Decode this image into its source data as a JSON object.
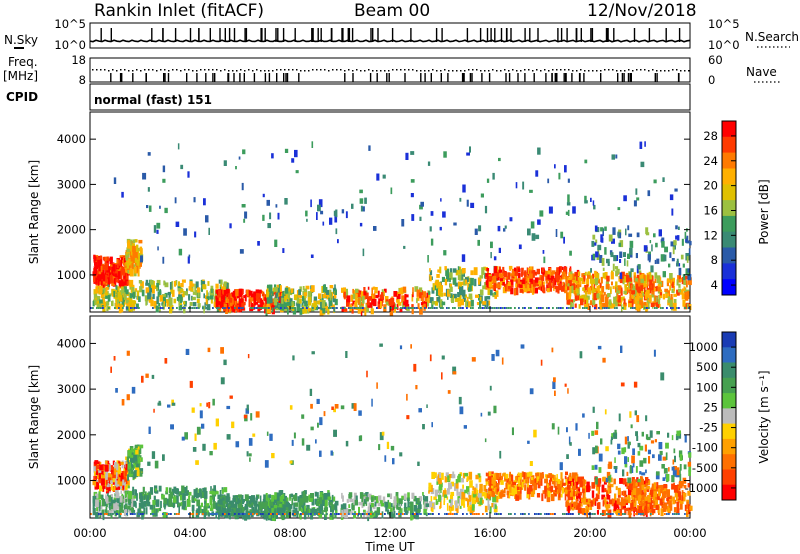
{
  "header": {
    "station": "Rankin Inlet (fitACF)",
    "beam": "Beam 00",
    "date": "12/Nov/2018"
  },
  "left_labels": {
    "nsky": "N.Sky",
    "freq_top": "Freq.",
    "freq_unit": "[MHz]",
    "cpid": "CPID"
  },
  "right_labels": {
    "nsearch": "N.Search",
    "nave": "Nave"
  },
  "cpid_text": "normal (fast) 151",
  "nsky_ticks": [
    "10^5",
    "10^0"
  ],
  "nsearch_ticks": [
    "10^5",
    "10^0"
  ],
  "freq_ticks": [
    "18",
    "8"
  ],
  "nave_ticks": [
    "60",
    "0"
  ],
  "chart_data": [
    {
      "type": "heatmap",
      "quantity": "Power",
      "ylabel": "Slant Range [km]",
      "ylim": [
        180,
        4600
      ],
      "yticks": [
        "1000",
        "2000",
        "3000",
        "4000"
      ],
      "xlabel": "Time UT",
      "xticks": [
        "00:00",
        "04:00",
        "08:00",
        "12:00",
        "16:00",
        "20:00",
        "00:00"
      ],
      "colorbar": {
        "label": "Power [dB]",
        "ticks": [
          "28",
          "24",
          "20",
          "16",
          "12",
          "8",
          "4"
        ],
        "colors": [
          "#ff0000",
          "#ff3a00",
          "#ff7a00",
          "#ffb000",
          "#e0c000",
          "#9cc040",
          "#3c9c5c",
          "#3a8a74",
          "#2a5aa8",
          "#1a30d8",
          "#0000ff"
        ]
      }
    },
    {
      "type": "heatmap",
      "quantity": "Velocity",
      "ylabel": "Slant Range [km]",
      "ylim": [
        180,
        4600
      ],
      "yticks": [
        "1000",
        "2000",
        "3000",
        "4000"
      ],
      "xlabel": "Time UT",
      "xticks": [
        "00:00",
        "04:00",
        "08:00",
        "12:00",
        "16:00",
        "20:00",
        "00:00"
      ],
      "colorbar": {
        "label": "Velocity [m s⁻¹]",
        "ticks": [
          "1000",
          "500",
          "100",
          "25",
          "-25",
          "-100",
          "-500",
          "-1000"
        ],
        "colors": [
          "#1a3cb4",
          "#2e6cc0",
          "#3a8c6c",
          "#46a050",
          "#5cc43c",
          "#bcbcbc",
          "#ffd000",
          "#ffa000",
          "#ff7000",
          "#ff4000",
          "#ff0000"
        ]
      }
    }
  ]
}
